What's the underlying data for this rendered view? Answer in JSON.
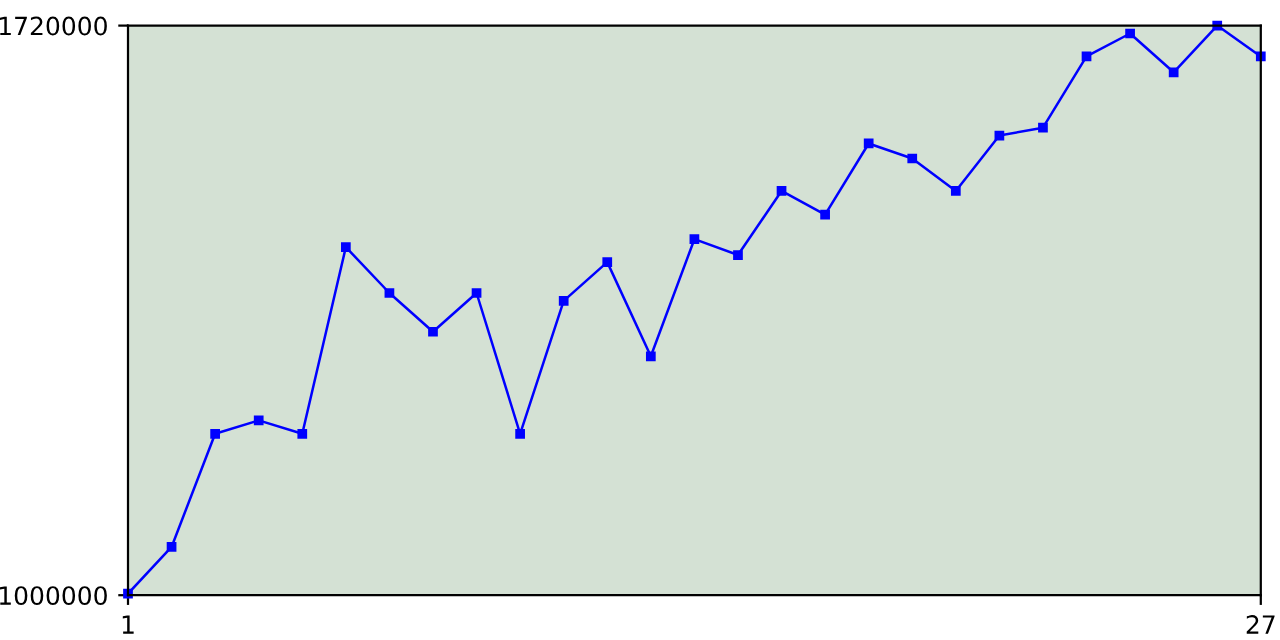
{
  "chart_data": {
    "type": "line",
    "x": [
      1,
      2,
      3,
      4,
      5,
      6,
      7,
      8,
      9,
      10,
      11,
      12,
      13,
      14,
      15,
      16,
      17,
      18,
      19,
      20,
      21,
      22,
      23,
      24,
      25,
      26,
      27
    ],
    "series": [
      {
        "color": "#0000ff",
        "values": [
          1002000,
          1061000,
          1204000,
          1221000,
          1204000,
          1440000,
          1382000,
          1333000,
          1382000,
          1204000,
          1372000,
          1421000,
          1302000,
          1450000,
          1430000,
          1511000,
          1481000,
          1571000,
          1552000,
          1511000,
          1581000,
          1591000,
          1681000,
          1710000,
          1661000,
          1720000,
          1681000
        ]
      }
    ],
    "xlim": [
      1,
      27
    ],
    "xticks": [
      1,
      27
    ],
    "ylim": [
      1000000,
      1720000
    ],
    "yticks": [
      1000000,
      1720000
    ],
    "marker": "square",
    "line_style": "solid",
    "grid": false,
    "legend": false
  }
}
